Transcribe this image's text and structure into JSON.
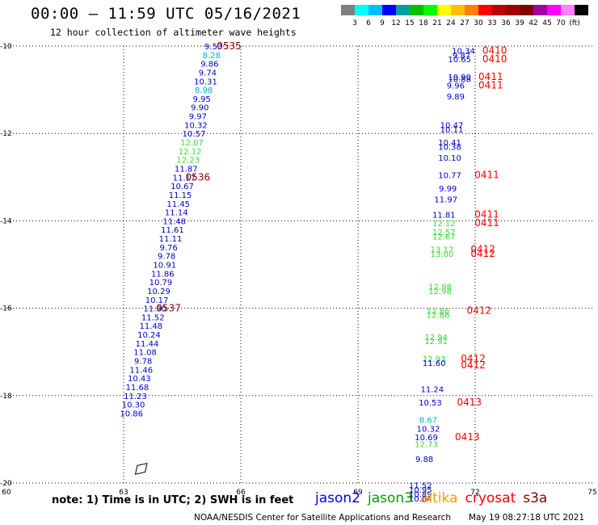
{
  "title": "00:00 – 11:59 UTC 05/16/2021",
  "subtitle": "12 hour collection of altimeter wave heights",
  "colorbar": {
    "colors": [
      "#808080",
      "#00ffff",
      "#00bfff",
      "#0000ff",
      "#00a0a0",
      "#00c000",
      "#00ff00",
      "#ffff00",
      "#ffc000",
      "#ff8000",
      "#ff0000",
      "#c00000",
      "#a00000",
      "#800000",
      "#a000a0",
      "#ff00ff",
      "#ff80ff",
      "#000000"
    ],
    "labels": [
      "3",
      "6",
      "9",
      "12",
      "15",
      "18",
      "21",
      "24",
      "27",
      "30",
      "33",
      "36",
      "39",
      "42",
      "45",
      "70",
      "(ft)"
    ]
  },
  "note": "note:  1) Time is in UTC;  2) SWH is in feet",
  "legend": [
    {
      "name": "jason2",
      "color": "#0000ff"
    },
    {
      "name": "jason3",
      "color": "#00a000"
    },
    {
      "name": "altika",
      "color": "#ff9900"
    },
    {
      "name": "cryosat",
      "color": "#ff0000"
    },
    {
      "name": "s3a",
      "color": "#800000"
    }
  ],
  "credit": "NOAA/NESDIS Center for Satellite Applications and Research",
  "timestamp": "May 19 08:27:18 UTC 2021",
  "chart_data": {
    "type": "scatter",
    "xlim": [
      60,
      75
    ],
    "ylim": [
      -20,
      -10
    ],
    "x_ticks": [
      60,
      63,
      66,
      69,
      72,
      75
    ],
    "y_ticks": [
      -10,
      -12,
      -14,
      -16,
      -18,
      -20
    ],
    "grid": true,
    "colors": {
      "blue": "#0000cc",
      "cyan": "#00b0d8",
      "green": "#33dd33",
      "darkred": "#880000",
      "red": "#ff0000"
    },
    "west_track": [
      {
        "x": 65.3,
        "y": -10.0,
        "label": "9.53",
        "c": "blue"
      },
      {
        "x": 65.25,
        "y": -10.2,
        "label": "8.28",
        "c": "cyan"
      },
      {
        "x": 65.2,
        "y": -10.4,
        "label": "9.86",
        "c": "blue"
      },
      {
        "x": 65.15,
        "y": -10.6,
        "label": "9.74",
        "c": "blue"
      },
      {
        "x": 65.1,
        "y": -10.8,
        "label": "10.31",
        "c": "blue"
      },
      {
        "x": 65.05,
        "y": -11.0,
        "label": "8.98",
        "c": "cyan"
      },
      {
        "x": 65.0,
        "y": -11.2,
        "label": "9.95",
        "c": "blue"
      },
      {
        "x": 64.95,
        "y": -11.4,
        "label": "9.90",
        "c": "blue"
      },
      {
        "x": 64.9,
        "y": -11.6,
        "label": "9.97",
        "c": "blue"
      },
      {
        "x": 64.85,
        "y": -11.8,
        "label": "10.32",
        "c": "blue"
      },
      {
        "x": 64.8,
        "y": -12.0,
        "label": "10.57",
        "c": "blue"
      },
      {
        "x": 64.75,
        "y": -12.2,
        "label": "12.07",
        "c": "green"
      },
      {
        "x": 64.7,
        "y": -12.4,
        "label": "12.12",
        "c": "green"
      },
      {
        "x": 64.65,
        "y": -12.6,
        "label": "12.23",
        "c": "green"
      },
      {
        "x": 64.6,
        "y": -12.8,
        "label": "11.87",
        "c": "blue"
      },
      {
        "x": 64.55,
        "y": -13.0,
        "label": "11.17",
        "c": "blue"
      },
      {
        "x": 64.5,
        "y": -13.2,
        "label": "10.67",
        "c": "blue"
      },
      {
        "x": 64.45,
        "y": -13.4,
        "label": "11.15",
        "c": "blue"
      },
      {
        "x": 64.4,
        "y": -13.6,
        "label": "11.45",
        "c": "blue"
      },
      {
        "x": 64.35,
        "y": -13.8,
        "label": "11.14",
        "c": "blue"
      },
      {
        "x": 64.3,
        "y": -14.0,
        "label": "11.48",
        "c": "blue"
      },
      {
        "x": 64.25,
        "y": -14.2,
        "label": "11.61",
        "c": "blue"
      },
      {
        "x": 64.2,
        "y": -14.4,
        "label": "11.11",
        "c": "blue"
      },
      {
        "x": 64.15,
        "y": -14.6,
        "label": "9.76",
        "c": "blue"
      },
      {
        "x": 64.1,
        "y": -14.8,
        "label": "9.78",
        "c": "blue"
      },
      {
        "x": 64.05,
        "y": -15.0,
        "label": "10.91",
        "c": "blue"
      },
      {
        "x": 64.0,
        "y": -15.2,
        "label": "11.86",
        "c": "blue"
      },
      {
        "x": 63.95,
        "y": -15.4,
        "label": "10.79",
        "c": "blue"
      },
      {
        "x": 63.9,
        "y": -15.6,
        "label": "10.29",
        "c": "blue"
      },
      {
        "x": 63.85,
        "y": -15.8,
        "label": "10.17",
        "c": "blue"
      },
      {
        "x": 63.8,
        "y": -16.0,
        "label": "11.90",
        "c": "blue"
      },
      {
        "x": 63.75,
        "y": -16.2,
        "label": "11.52",
        "c": "blue"
      },
      {
        "x": 63.7,
        "y": -16.4,
        "label": "11.48",
        "c": "blue"
      },
      {
        "x": 63.65,
        "y": -16.6,
        "label": "10.24",
        "c": "blue"
      },
      {
        "x": 63.6,
        "y": -16.8,
        "label": "11.44",
        "c": "blue"
      },
      {
        "x": 63.55,
        "y": -17.0,
        "label": "11.08",
        "c": "blue"
      },
      {
        "x": 63.5,
        "y": -17.2,
        "label": "9.78",
        "c": "blue"
      },
      {
        "x": 63.45,
        "y": -17.4,
        "label": "11.46",
        "c": "blue"
      },
      {
        "x": 63.4,
        "y": -17.6,
        "label": "10.43",
        "c": "blue"
      },
      {
        "x": 63.35,
        "y": -17.8,
        "label": "11.68",
        "c": "blue"
      },
      {
        "x": 63.3,
        "y": -18.0,
        "label": "11.23",
        "c": "blue"
      },
      {
        "x": 63.25,
        "y": -18.2,
        "label": "10.30",
        "c": "blue"
      },
      {
        "x": 63.2,
        "y": -18.4,
        "label": "10.86",
        "c": "blue"
      }
    ],
    "east_track": [
      {
        "x": 71.7,
        "y": -10.1,
        "label": "10.34",
        "c": "blue"
      },
      {
        "x": 71.65,
        "y": -10.2,
        "label": "9.87",
        "c": "blue"
      },
      {
        "x": 71.6,
        "y": -10.3,
        "label": "10.65",
        "c": "blue"
      },
      {
        "x": 71.6,
        "y": -10.7,
        "label": "10.90",
        "c": "blue"
      },
      {
        "x": 71.6,
        "y": -10.75,
        "label": "10.88",
        "c": "blue"
      },
      {
        "x": 71.5,
        "y": -10.9,
        "label": "9.96",
        "c": "blue"
      },
      {
        "x": 71.5,
        "y": -11.15,
        "label": "9.89",
        "c": "blue"
      },
      {
        "x": 71.4,
        "y": -11.8,
        "label": "10.47",
        "c": "blue"
      },
      {
        "x": 71.4,
        "y": -11.9,
        "label": "10.11",
        "c": "blue"
      },
      {
        "x": 71.35,
        "y": -12.2,
        "label": "10.41",
        "c": "blue"
      },
      {
        "x": 71.35,
        "y": -12.3,
        "label": "10.38",
        "c": "blue"
      },
      {
        "x": 71.35,
        "y": -12.55,
        "label": "10.10",
        "c": "blue"
      },
      {
        "x": 71.35,
        "y": -12.95,
        "label": "10.77",
        "c": "blue"
      },
      {
        "x": 71.3,
        "y": -13.25,
        "label": "9.99",
        "c": "blue"
      },
      {
        "x": 71.25,
        "y": -13.5,
        "label": "11.97",
        "c": "blue"
      },
      {
        "x": 71.2,
        "y": -13.85,
        "label": "11.81",
        "c": "blue"
      },
      {
        "x": 71.2,
        "y": -14.05,
        "label": "12.12",
        "c": "green"
      },
      {
        "x": 71.2,
        "y": -14.25,
        "label": "12.57",
        "c": "green"
      },
      {
        "x": 71.2,
        "y": -14.35,
        "label": "12.67",
        "c": "green"
      },
      {
        "x": 71.15,
        "y": -14.65,
        "label": "13.17",
        "c": "green"
      },
      {
        "x": 71.15,
        "y": -14.75,
        "label": "13.00",
        "c": "green"
      },
      {
        "x": 71.1,
        "y": -15.5,
        "label": "12.98",
        "c": "green"
      },
      {
        "x": 71.1,
        "y": -15.6,
        "label": "12.98",
        "c": "green"
      },
      {
        "x": 71.05,
        "y": -16.05,
        "label": "12.86",
        "c": "green"
      },
      {
        "x": 71.05,
        "y": -16.15,
        "label": "12.86",
        "c": "green"
      },
      {
        "x": 71.0,
        "y": -16.65,
        "label": "12.94",
        "c": "green"
      },
      {
        "x": 71.0,
        "y": -16.75,
        "label": "12.91",
        "c": "green"
      },
      {
        "x": 70.95,
        "y": -17.15,
        "label": "12.93",
        "c": "green"
      },
      {
        "x": 70.95,
        "y": -17.25,
        "label": "11.60",
        "c": "blue"
      },
      {
        "x": 70.9,
        "y": -17.85,
        "label": "11.24",
        "c": "blue"
      },
      {
        "x": 70.85,
        "y": -18.15,
        "label": "10.53",
        "c": "blue"
      },
      {
        "x": 70.8,
        "y": -18.55,
        "label": "8.67",
        "c": "cyan"
      },
      {
        "x": 70.8,
        "y": -18.75,
        "label": "10.32",
        "c": "blue"
      },
      {
        "x": 70.75,
        "y": -18.95,
        "label": "10.69",
        "c": "blue"
      },
      {
        "x": 70.75,
        "y": -19.1,
        "label": "12.73",
        "c": "green"
      },
      {
        "x": 70.7,
        "y": -19.45,
        "label": "9.88",
        "c": "blue"
      },
      {
        "x": 70.6,
        "y": -20.05,
        "label": "11.52",
        "c": "blue"
      },
      {
        "x": 70.6,
        "y": -20.15,
        "label": "10.95",
        "c": "blue"
      },
      {
        "x": 70.6,
        "y": -20.25,
        "label": "10.89",
        "c": "blue"
      },
      {
        "x": 70.6,
        "y": -20.35,
        "label": "10.64",
        "c": "blue"
      }
    ],
    "time_labels": [
      {
        "x": 65.7,
        "y": -10.0,
        "label": "0535",
        "c": "darkred"
      },
      {
        "x": 64.9,
        "y": -13.0,
        "label": "0536",
        "c": "darkred"
      },
      {
        "x": 64.15,
        "y": -16.0,
        "label": "0537",
        "c": "darkred"
      },
      {
        "x": 72.5,
        "y": -10.1,
        "label": "0410",
        "c": "red"
      },
      {
        "x": 72.5,
        "y": -10.3,
        "label": "0410",
        "c": "red"
      },
      {
        "x": 72.4,
        "y": -10.7,
        "label": "0411",
        "c": "red"
      },
      {
        "x": 72.4,
        "y": -10.9,
        "label": "0411",
        "c": "red"
      },
      {
        "x": 72.3,
        "y": -12.95,
        "label": "0411",
        "c": "red"
      },
      {
        "x": 72.3,
        "y": -13.85,
        "label": "0411",
        "c": "red"
      },
      {
        "x": 72.3,
        "y": -14.05,
        "label": "0411",
        "c": "red"
      },
      {
        "x": 72.2,
        "y": -14.65,
        "label": "0412",
        "c": "red"
      },
      {
        "x": 72.2,
        "y": -14.75,
        "label": "0412",
        "c": "red"
      },
      {
        "x": 72.1,
        "y": -16.05,
        "label": "0412",
        "c": "red"
      },
      {
        "x": 71.95,
        "y": -17.15,
        "label": "0412",
        "c": "red"
      },
      {
        "x": 71.95,
        "y": -17.3,
        "label": "0412",
        "c": "red"
      },
      {
        "x": 71.85,
        "y": -18.15,
        "label": "0413",
        "c": "red"
      },
      {
        "x": 71.8,
        "y": -18.95,
        "label": "0413",
        "c": "red"
      }
    ],
    "land_outline": [
      [
        63.35,
        -19.6
      ],
      [
        63.6,
        -19.55
      ],
      [
        63.55,
        -19.75
      ],
      [
        63.3,
        -19.8
      ],
      [
        63.35,
        -19.6
      ]
    ]
  }
}
